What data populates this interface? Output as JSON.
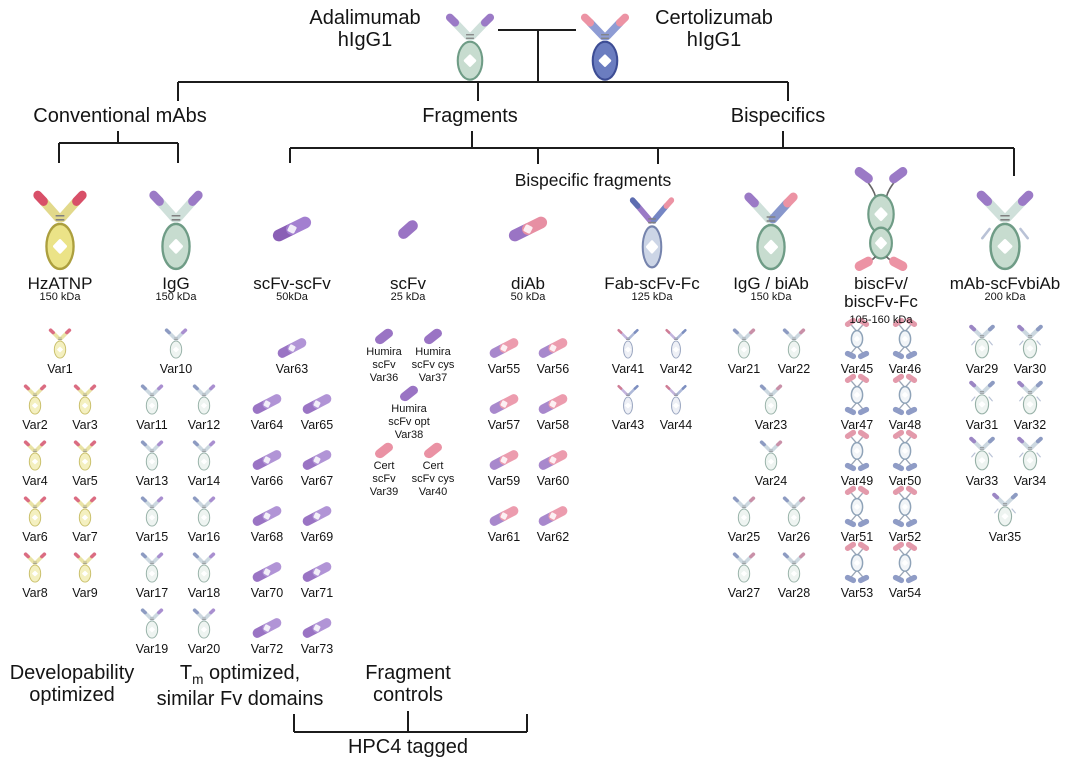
{
  "figure": {
    "background": "#ffffff",
    "line_color": "#1c1c1c",
    "text_color": "#141414"
  },
  "top": {
    "left": {
      "name": "Adalimumab",
      "subtype": "hIgG1",
      "icon": {
        "name": "adalimumab-igg-icon",
        "type": "ab",
        "colors": {
          "body": "#c7dccf",
          "stroke": "#6f9c86",
          "arm": "#cfe0da",
          "tip": "#9b7ac6",
          "tip2": "#7e57ae"
        }
      }
    },
    "right": {
      "name": "Certolizumab",
      "subtype": "hIgG1",
      "icon": {
        "name": "certolizumab-igg-icon",
        "type": "ab",
        "colors": {
          "body": "#6b7dc0",
          "stroke": "#3d4d95",
          "arm": "#8e9cd4",
          "tip": "#ec93a4",
          "tip2": "#d66a87"
        }
      }
    }
  },
  "groups": [
    {
      "label": "Conventional mAbs"
    },
    {
      "label": "Fragments"
    },
    {
      "label": "Bispecifics"
    }
  ],
  "subgroup_label": "Bispecific fragments",
  "columns": [
    {
      "key": "hzatnp",
      "header": {
        "label": "HzATNP",
        "mass": "150 kDa"
      },
      "header_icon": {
        "name": "hzatnp-antibody-icon",
        "type": "ab",
        "colors": {
          "body": "#ebe387",
          "stroke": "#ac9f3e",
          "arm": "#e2d98b",
          "tip": "#d84f68",
          "tip2": "#b73b55"
        }
      },
      "variant_icon": {
        "name": "hzatnp-variant-icon",
        "type": "ab",
        "colors": {
          "body": "#f4f0c0",
          "stroke": "#c9bf6a",
          "arm": "#e9e3a6",
          "tip": "#db6c82",
          "tip2": "#c14e66"
        }
      },
      "rows": [
        [
          "Var1"
        ],
        [
          "Var2",
          "Var3"
        ],
        [
          "Var4",
          "Var5"
        ],
        [
          "Var6",
          "Var7"
        ],
        [
          "Var8",
          "Var9"
        ]
      ]
    },
    {
      "key": "igg",
      "header": {
        "label": "IgG",
        "mass": "150 kDa"
      },
      "header_icon": {
        "name": "igg-antibody-icon",
        "type": "ab",
        "colors": {
          "body": "#c7dccf",
          "stroke": "#6f9c86",
          "arm": "#cfe0da",
          "tip": "#9b7ac6",
          "tip2": "#7e57ae"
        }
      },
      "variant_icon": {
        "name": "igg-variant-icon",
        "type": "ab",
        "colors": {
          "body": "#eef4f1",
          "stroke": "#97b1a7",
          "arm": "#ccd8e0",
          "tip": "#8d9bc2",
          "tip2": "#7d8fc0",
          "tipR": "#a98fd0",
          "tipR2": "#9b86c4"
        }
      },
      "rows": [
        [
          "Var10"
        ],
        [
          "Var11",
          "Var12"
        ],
        [
          "Var13",
          "Var14"
        ],
        [
          "Var15",
          "Var16"
        ],
        [
          "Var17",
          "Var18"
        ],
        [
          "Var19",
          "Var20"
        ]
      ]
    },
    {
      "key": "scfv-scfv",
      "header": {
        "label": "scFv-scFv",
        "mass": "50kDa"
      },
      "header_icon": {
        "name": "scfv-scfv-dumbbell-icon",
        "type": "dumbbell",
        "colors": {
          "c1": "#8a5fb5",
          "c2": "#a37fd0",
          "d1": "#6d4a97",
          "d2": "#8a5fb5"
        }
      },
      "variant_icon": {
        "name": "scfv-scfv-variant-icon",
        "type": "dumbbell",
        "colors": {
          "c1": "#9a74c4",
          "c2": "#b194d6",
          "d1": "#7e57ae",
          "d2": "#9a74c4"
        }
      },
      "rows": [
        [
          "Var63"
        ],
        [
          "Var64",
          "Var65"
        ],
        [
          "Var66",
          "Var67"
        ],
        [
          "Var68",
          "Var69"
        ],
        [
          "Var70",
          "Var71"
        ],
        [
          "Var72",
          "Var73"
        ]
      ]
    },
    {
      "key": "scfv",
      "header": {
        "label": "scFv",
        "mass": "25 kDa"
      },
      "header_icon": {
        "name": "scfv-blob-icon",
        "type": "scfv",
        "colors": {
          "c": "#9a74c4",
          "d": "#7e57ae"
        }
      },
      "variant_icon": {
        "name": "scfv-variant-icon",
        "type": "scfv",
        "colors": {
          "c": "#9a74c4",
          "d": "#7e57ae"
        }
      },
      "variant_icon_alt": {
        "name": "scfv-variant-icon-pink",
        "type": "scfv",
        "colors": {
          "c": "#ea92a4",
          "d": "#d66a87"
        }
      },
      "cells": [
        {
          "lines": [
            "Humira",
            "scFv",
            "Var36"
          ]
        },
        {
          "lines": [
            "Humira",
            "scFv cys",
            "Var37"
          ]
        },
        {
          "lines": [
            "Humira",
            "scFv opt",
            "Var38"
          ]
        },
        {
          "lines": [
            "Cert",
            "scFv",
            "Var39"
          ],
          "alt": true
        },
        {
          "lines": [
            "Cert",
            "scFv cys",
            "Var40"
          ],
          "alt": true
        }
      ]
    },
    {
      "key": "diab",
      "header": {
        "label": "diAb",
        "mass": "50 kDa"
      },
      "header_icon": {
        "name": "diab-dumbbell-icon",
        "type": "dumbbell",
        "colors": {
          "c1": "#9a74c4",
          "c2": "#e78fa3",
          "d1": "#7e57ae",
          "d2": "#d66a87"
        }
      },
      "variant_icon": {
        "name": "diab-variant-icon",
        "type": "dumbbell",
        "colors": {
          "c1": "#a888cc",
          "c2": "#ec9cae",
          "d1": "#8a5fb5",
          "d2": "#d66a87"
        }
      },
      "rows": [
        [
          "Var55",
          "Var56"
        ],
        [
          "Var57",
          "Var58"
        ],
        [
          "Var59",
          "Var60"
        ],
        [
          "Var61",
          "Var62"
        ]
      ]
    },
    {
      "key": "fab-scfv-fc",
      "header": {
        "label": "Fab-scFv-Fc",
        "mass": "125 kDa"
      },
      "header_icon": {
        "name": "fab-scfv-fc-antibody-icon",
        "type": "ab",
        "slim": true,
        "colors": {
          "body": "#ccd5e6",
          "stroke": "#7684ad",
          "arm": "#9b7ac6",
          "tip": "#5d6cb0",
          "tip2": "#3f51a0",
          "armR": "#7586c4",
          "tipR": "#ec93a4",
          "tipR2": "#d66a87"
        }
      },
      "variant_icon": {
        "name": "fab-scfv-fc-variant-icon",
        "type": "ab",
        "slim": true,
        "colors": {
          "body": "#eef0f6",
          "stroke": "#9aa6c0",
          "arm": "#c3b4dd",
          "tip": "#cf7d96",
          "tip2": "#c16a85",
          "armR": "#aeb9d8",
          "tipR": "#7d8fc0",
          "tipR2": "#6a7cb4"
        }
      },
      "rows": [
        [
          "Var41",
          "Var42"
        ],
        [
          "Var43",
          "Var44"
        ]
      ]
    },
    {
      "key": "igg-biab",
      "header": {
        "label": "IgG / biAb",
        "mass": "150 kDa"
      },
      "header_icon": {
        "name": "igg-biab-antibody-icon",
        "type": "ab",
        "colors": {
          "body": "#c7dccf",
          "stroke": "#6f9c86",
          "arm": "#cfe0da",
          "tip": "#9b7ac6",
          "tip2": "#7e57ae",
          "armR": "#8897cc",
          "tipR": "#ec93a4",
          "tipR2": "#d66a87"
        }
      },
      "variant_icon": {
        "name": "igg-biab-variant-icon",
        "type": "ab",
        "colors": {
          "body": "#eef4f1",
          "stroke": "#97b1a7",
          "arm": "#ccd8e0",
          "tip": "#8d9bc2",
          "tip2": "#7d8fc0",
          "tipR": "#c990a8",
          "tipR2": "#b87a94"
        }
      },
      "rows": [
        [
          "Var21",
          "Var22"
        ],
        [
          "Var23"
        ],
        [
          "Var24"
        ],
        [
          "Var25",
          "Var26"
        ],
        [
          "Var27",
          "Var28"
        ]
      ]
    },
    {
      "key": "biscfv",
      "header": {
        "label": [
          "biscFv/",
          "biscFv-Fc"
        ],
        "mass": "105-160 kDa"
      },
      "header_icon": {
        "name": "biscfv-fc-icon",
        "type": "biscfv",
        "colors": {
          "body": "#c7dccf",
          "stroke": "#6f9c86",
          "top": "#9b7ac6",
          "topD": "#7e57ae",
          "bot": "#ec93a4",
          "botD": "#d66a87"
        }
      },
      "variant_icon": {
        "name": "biscfv-variant-icon",
        "type": "biscfv2",
        "colors": {
          "body": "#f2f5f8",
          "stroke": "#8fa3b8",
          "top": "#e39aab",
          "topD": "#cf7d96",
          "bot": "#8f9cc6",
          "botD": "#7d8fc0"
        }
      },
      "rows": [
        [
          "Var45",
          "Var46"
        ],
        [
          "Var47",
          "Var48"
        ],
        [
          "Var49",
          "Var50"
        ],
        [
          "Var51",
          "Var52"
        ],
        [
          "Var53",
          "Var54"
        ]
      ]
    },
    {
      "key": "mab-scfvbiab",
      "header": {
        "label": "mAb-scFvbiAb",
        "mass": "200 kDa"
      },
      "header_icon": {
        "name": "mab-scfvbiab-antibody-icon",
        "type": "ab",
        "colors": {
          "body": "#c7dccf",
          "stroke": "#6f9c86",
          "arm": "#cfe0da",
          "tip": "#9b7ac6",
          "tip2": "#7e57ae",
          "lower": "#ec93a4",
          "lower2": "#d66a87"
        }
      },
      "variant_icon": {
        "name": "mab-scfvbiab-variant-icon",
        "type": "ab",
        "colors": {
          "body": "#eef4f1",
          "stroke": "#97b1a7",
          "arm": "#ccd8e0",
          "tip": "#9b86c4",
          "tip2": "#8a5fb5",
          "tipR": "#8d9bc2",
          "tipR2": "#7d8fc0",
          "lower": "#e8a2b2",
          "lower2": "#d66a87"
        }
      },
      "rows": [
        [
          "Var29",
          "Var30"
        ],
        [
          "Var31",
          "Var32"
        ],
        [
          "Var33",
          "Var34"
        ],
        [
          "Var35"
        ]
      ]
    }
  ],
  "footer": {
    "developability": [
      "Developability",
      "optimized"
    ],
    "tm": {
      "pre": "T",
      "sub": "m",
      "post": " optimized,",
      "line2": "similar Fv domains"
    },
    "fragment": [
      "Fragment",
      "controls"
    ],
    "hpc4": "HPC4 tagged"
  }
}
